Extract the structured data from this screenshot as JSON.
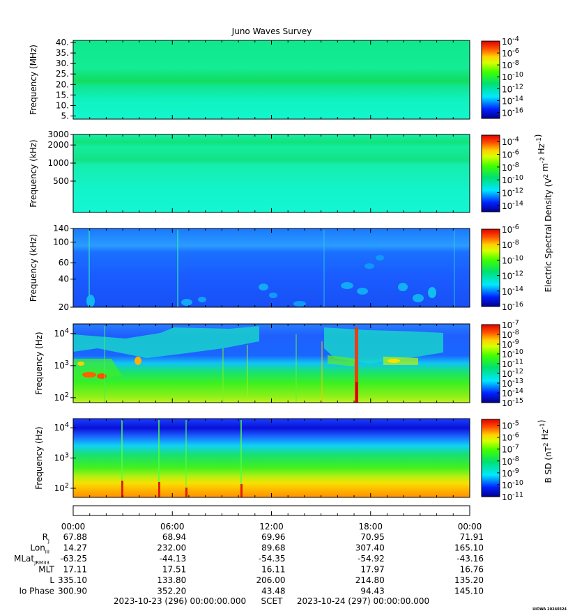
{
  "title": "Juno Waves Survey",
  "credit": "UIOWA 20240324",
  "chart_data": [
    {
      "type": "heatmap",
      "ylabel": "Frequency (MHz)",
      "ylim": [
        3.5,
        41
      ],
      "y_ticks": [
        {
          "v": 5,
          "label": "5."
        },
        {
          "v": 10,
          "label": "10."
        },
        {
          "v": 15,
          "label": "15."
        },
        {
          "v": 20,
          "label": "20."
        },
        {
          "v": 25,
          "label": "25."
        },
        {
          "v": 30,
          "label": "30."
        },
        {
          "v": 35,
          "label": "35."
        },
        {
          "v": 40,
          "label": "40."
        }
      ],
      "colorbar": {
        "range": [
          -17,
          -4
        ],
        "tick_exponents": [
          -4,
          -6,
          -8,
          -10,
          -12,
          -14,
          -16
        ]
      }
    },
    {
      "type": "heatmap",
      "ylabel": "Frequency (kHz)",
      "ylim": [
        150,
        3000
      ],
      "y_ticks": [
        {
          "v": 500,
          "label": "500"
        },
        {
          "v": 1000,
          "label": "1000"
        },
        {
          "v": 2000,
          "label": "2000"
        },
        {
          "v": 3000,
          "label": "3000"
        }
      ],
      "colorbar": {
        "range": [
          -15,
          -3
        ],
        "tick_exponents": [
          -4,
          -6,
          -8,
          -10,
          -12,
          -14
        ],
        "label": "Electric Spectral Density (V2 m-2 Hz-1)"
      }
    },
    {
      "type": "heatmap",
      "ylabel": "Frequency (kHz)",
      "ylim": [
        20,
        140
      ],
      "y_ticks": [
        {
          "v": 20,
          "label": "20"
        },
        {
          "v": 40,
          "label": "40"
        },
        {
          "v": 60,
          "label": "60"
        },
        {
          "v": 100,
          "label": "100"
        },
        {
          "v": 140,
          "label": "140"
        }
      ],
      "colorbar": {
        "range": [
          -16,
          -6
        ],
        "tick_exponents": [
          -6,
          -8,
          -10,
          -12,
          -14,
          -16
        ]
      }
    },
    {
      "type": "heatmap",
      "ylabel": "Frequency (Hz)",
      "ylim": [
        70,
        20000
      ],
      "y_ticks": [
        {
          "v": 100,
          "label": "10",
          "exp": "2"
        },
        {
          "v": 1000,
          "label": "10",
          "exp": "3"
        },
        {
          "v": 10000,
          "label": "10",
          "exp": "4"
        }
      ],
      "colorbar": {
        "range": [
          -15,
          -7
        ],
        "tick_exponents": [
          -7,
          -8,
          -9,
          -10,
          -11,
          -12,
          -13,
          -14,
          -15
        ]
      }
    },
    {
      "type": "heatmap",
      "ylabel": "Frequency (Hz)",
      "ylim": [
        50,
        20000
      ],
      "y_ticks": [
        {
          "v": 100,
          "label": "10",
          "exp": "2"
        },
        {
          "v": 1000,
          "label": "10",
          "exp": "3"
        },
        {
          "v": 10000,
          "label": "10",
          "exp": "4"
        }
      ],
      "colorbar": {
        "range": [
          -11,
          -4.5
        ],
        "tick_exponents": [
          -5,
          -6,
          -7,
          -8,
          -9,
          -10,
          -11
        ],
        "label": "B SD (nT2 Hz-1)"
      }
    }
  ],
  "time_axis": {
    "tick_labels": [
      "00:00",
      "06:00",
      "12:00",
      "18:00",
      "00:00"
    ],
    "rows": [
      {
        "label": "R",
        "sub": "J",
        "values": [
          "67.88",
          "68.94",
          "69.96",
          "70.95",
          "71.91"
        ]
      },
      {
        "label": "Lon",
        "sub": "III",
        "values": [
          "14.27",
          "232.00",
          "89.68",
          "307.40",
          "165.10"
        ]
      },
      {
        "label": "MLat",
        "sub": "JRM33",
        "values": [
          "-63.25",
          "-44.13",
          "-54.35",
          "-54.92",
          "-43.16"
        ]
      },
      {
        "label": "MLT",
        "sub": "",
        "values": [
          "17.11",
          "17.51",
          "16.11",
          "17.97",
          "16.76"
        ]
      },
      {
        "label": "L",
        "sub": "",
        "values": [
          "335.10",
          "133.80",
          "206.00",
          "214.80",
          "135.20"
        ]
      },
      {
        "label": "Io Phase",
        "sub": "",
        "values": [
          "300.90",
          "352.20",
          "43.48",
          "94.43",
          "145.10"
        ]
      }
    ],
    "start": "2023-10-23 (296) 00:00:00.000",
    "scet": "SCET",
    "end": "2023-10-24 (297) 00:00:00.000"
  }
}
